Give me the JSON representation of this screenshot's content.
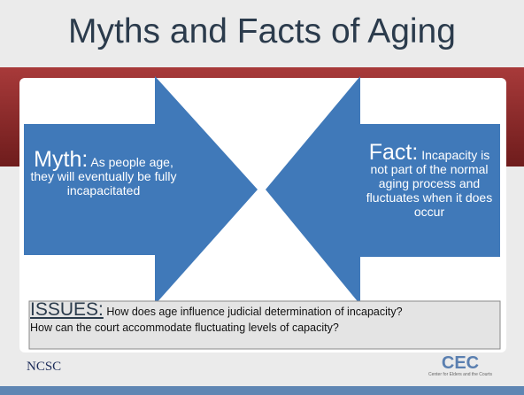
{
  "title": "Myths and Facts of Aging",
  "myth": {
    "label": "Myth:",
    "text": "As people age, they  will eventually be fully incapacitated"
  },
  "fact": {
    "label": "Fact:",
    "text": "Incapacity is not part of the normal aging process and fluctuates when it does occur"
  },
  "issues": {
    "label": "ISSUES:",
    "line1": "How does age influence judicial determination of incapacity?",
    "line2": "How can the court accommodate fluctuating levels of capacity?"
  },
  "footer": {
    "left_logo": "NCSC",
    "right_logo": "CEC",
    "right_caption": "Center for Elders and the Courts"
  }
}
